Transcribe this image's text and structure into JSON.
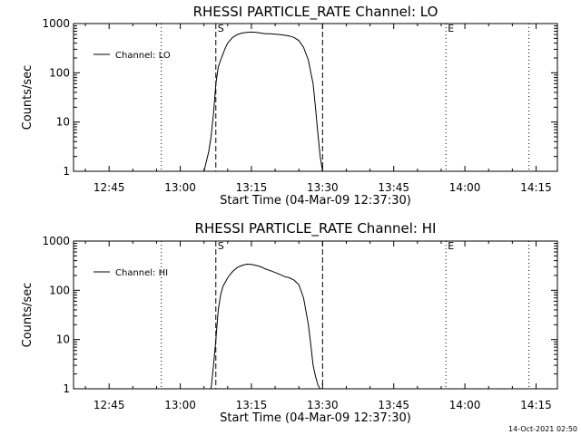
{
  "chart_data": [
    {
      "type": "line",
      "title": "RHESSI PARTICLE_RATE Channel: LO",
      "xlabel": "Start Time (04-Mar-09 12:37:30)",
      "ylabel": "Counts/sec",
      "yscale": "log",
      "ylim": [
        1,
        1000
      ],
      "xlim": [
        "12:37:30",
        "14:19:30"
      ],
      "x_ticks": [
        "12:45",
        "13:00",
        "13:15",
        "13:30",
        "13:45",
        "14:00",
        "14:15"
      ],
      "y_ticks": [
        "1",
        "10",
        "100",
        "1000"
      ],
      "legend": {
        "entries": [
          "Channel: LO"
        ],
        "placement": "top-left"
      },
      "markers": [
        {
          "label": "S",
          "time": "13:07:30",
          "style": "dashed"
        },
        {
          "label": "",
          "time": "13:30:00",
          "style": "dashed"
        },
        {
          "label": "",
          "time": "12:56:00",
          "style": "dotted"
        },
        {
          "label": "E",
          "time": "13:56:00",
          "style": "dotted"
        },
        {
          "label": "",
          "time": "14:13:30",
          "style": "dotted"
        }
      ],
      "series": [
        {
          "name": "Channel: LO",
          "x": [
            "13:05:00",
            "13:06:00",
            "13:06:30",
            "13:07:00",
            "13:07:30",
            "13:08:00",
            "13:08:30",
            "13:09:00",
            "13:09:30",
            "13:10:00",
            "13:11:00",
            "13:12:00",
            "13:13:00",
            "13:14:00",
            "13:15:00",
            "13:16:00",
            "13:17:00",
            "13:18:00",
            "13:19:00",
            "13:20:00",
            "13:21:00",
            "13:22:00",
            "13:23:00",
            "13:24:00",
            "13:25:00",
            "13:26:00",
            "13:27:00",
            "13:28:00",
            "13:28:30",
            "13:29:00",
            "13:29:30",
            "13:30:00"
          ],
          "y": [
            1,
            2.5,
            5,
            15,
            60,
            130,
            180,
            240,
            320,
            400,
            520,
            600,
            640,
            660,
            670,
            660,
            640,
            620,
            620,
            610,
            600,
            580,
            560,
            520,
            450,
            330,
            180,
            60,
            20,
            6,
            2,
            1
          ]
        }
      ]
    },
    {
      "type": "line",
      "title": "RHESSI PARTICLE_RATE Channel: HI",
      "xlabel": "Start Time (04-Mar-09 12:37:30)",
      "ylabel": "Counts/sec",
      "yscale": "log",
      "ylim": [
        1,
        1000
      ],
      "xlim": [
        "12:37:30",
        "14:19:30"
      ],
      "x_ticks": [
        "12:45",
        "13:00",
        "13:15",
        "13:30",
        "13:45",
        "14:00",
        "14:15"
      ],
      "y_ticks": [
        "1",
        "10",
        "100",
        "1000"
      ],
      "legend": {
        "entries": [
          "Channel: HI"
        ],
        "placement": "top-left"
      },
      "markers": [
        {
          "label": "S",
          "time": "13:07:30",
          "style": "dashed"
        },
        {
          "label": "",
          "time": "13:30:00",
          "style": "dashed"
        },
        {
          "label": "",
          "time": "12:56:00",
          "style": "dotted"
        },
        {
          "label": "E",
          "time": "13:56:00",
          "style": "dotted"
        },
        {
          "label": "",
          "time": "14:13:30",
          "style": "dotted"
        }
      ],
      "series": [
        {
          "name": "Channel: HI",
          "x": [
            "13:06:30",
            "13:07:00",
            "13:07:30",
            "13:08:00",
            "13:08:30",
            "13:09:00",
            "13:10:00",
            "13:11:00",
            "13:12:00",
            "13:13:00",
            "13:14:00",
            "13:15:00",
            "13:16:00",
            "13:17:00",
            "13:18:00",
            "13:19:00",
            "13:20:00",
            "13:21:00",
            "13:22:00",
            "13:23:00",
            "13:24:00",
            "13:25:00",
            "13:26:00",
            "13:27:00",
            "13:27:30",
            "13:28:00",
            "13:28:30",
            "13:29:00",
            "13:29:30"
          ],
          "y": [
            1,
            3,
            10,
            40,
            80,
            120,
            180,
            240,
            290,
            320,
            340,
            335,
            320,
            300,
            270,
            250,
            230,
            210,
            190,
            180,
            160,
            130,
            70,
            20,
            8,
            3,
            1.8,
            1.2,
            1
          ]
        }
      ]
    }
  ],
  "timestamp": "14-Oct-2021 02:50"
}
